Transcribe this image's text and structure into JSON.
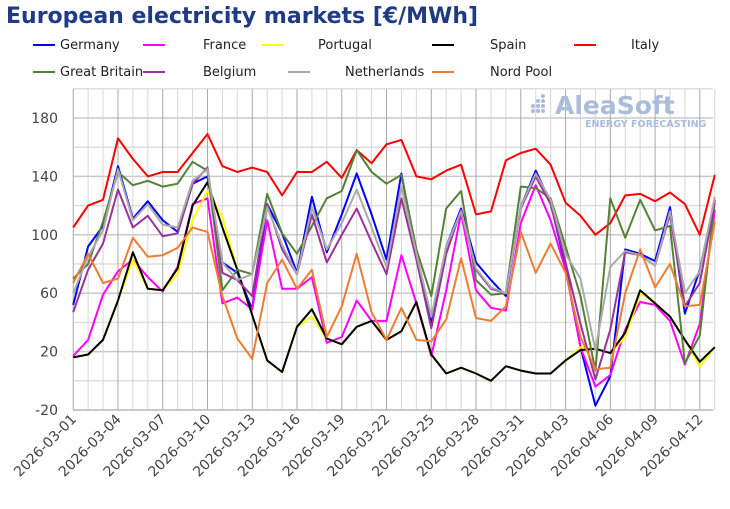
{
  "chart_data": {
    "type": "line",
    "title": "European electricity markets [€/MWh]",
    "xlabel": "",
    "ylabel": "",
    "ylim": [
      -20,
      200
    ],
    "yticks": [
      -20,
      20,
      60,
      100,
      140,
      180
    ],
    "grid": true,
    "legend_placement": "top",
    "start_date": "2026-03-01",
    "xtick_labels": [
      "2026-03-01",
      "2026-03-04",
      "2026-03-07",
      "2026-03-10",
      "2026-03-13",
      "2026-03-16",
      "2026-03-19",
      "2026-03-22",
      "2026-03-25",
      "2026-03-28",
      "2026-03-31",
      "2026-04-03",
      "2026-04-06",
      "2026-04-09",
      "2026-04-12"
    ],
    "series": [
      {
        "name": "Germany",
        "color": "#0000ff",
        "values": [
          52,
          92,
          106,
          147,
          111,
          123,
          110,
          102,
          135,
          140,
          81,
          74,
          49,
          121,
          101,
          74,
          126,
          88,
          114,
          142,
          114,
          83,
          142,
          87,
          39,
          92,
          118,
          81,
          69,
          58,
          119,
          144,
          122,
          78,
          23,
          -17,
          3,
          90,
          87,
          82,
          119,
          46,
          76,
          124
        ]
      },
      {
        "name": "France",
        "color": "#ff00ff",
        "values": [
          17,
          28,
          59,
          75,
          83,
          71,
          61,
          78,
          121,
          125,
          53,
          57,
          49,
          110,
          63,
          63,
          71,
          26,
          30,
          55,
          41,
          41,
          86,
          53,
          17,
          62,
          115,
          62,
          50,
          48,
          108,
          134,
          110,
          76,
          23,
          -4,
          4,
          35,
          54,
          52,
          41,
          11,
          39,
          117
        ]
      },
      {
        "name": "Portugal",
        "color": "#ffff00",
        "values": [
          16,
          18,
          28,
          55,
          83,
          63,
          62,
          73,
          110,
          130,
          112,
          76,
          45,
          14,
          6,
          37,
          44,
          29,
          25,
          37,
          41,
          28,
          34,
          54,
          18,
          5,
          9,
          5,
          0,
          10,
          7,
          5,
          5,
          14,
          23,
          22,
          19,
          30,
          60,
          53,
          44,
          28,
          10,
          23
        ]
      },
      {
        "name": "Spain",
        "color": "#000000",
        "values": [
          16,
          18,
          28,
          55,
          88,
          63,
          62,
          77,
          120,
          136,
          105,
          76,
          45,
          14,
          6,
          37,
          49,
          29,
          25,
          37,
          41,
          28,
          34,
          54,
          18,
          5,
          9,
          5,
          0,
          10,
          7,
          5,
          5,
          14,
          21,
          22,
          19,
          33,
          62,
          53,
          44,
          28,
          13,
          23
        ]
      },
      {
        "name": "Italy",
        "color": "#ff0000",
        "values": [
          105,
          120,
          124,
          166,
          152,
          140,
          143,
          143,
          156,
          169,
          147,
          143,
          146,
          143,
          127,
          143,
          143,
          150,
          139,
          158,
          149,
          162,
          165,
          140,
          138,
          144,
          148,
          114,
          116,
          151,
          156,
          159,
          148,
          122,
          113,
          100,
          108,
          127,
          128,
          123,
          129,
          121,
          100,
          141
        ]
      },
      {
        "name": "Great Britain",
        "color": "#548235",
        "values": [
          70,
          80,
          109,
          143,
          134,
          137,
          133,
          135,
          150,
          144,
          62,
          76,
          73,
          128,
          101,
          87,
          106,
          125,
          130,
          158,
          143,
          135,
          141,
          90,
          58,
          118,
          130,
          69,
          59,
          60,
          133,
          132,
          125,
          92,
          58,
          7,
          125,
          98,
          124,
          103,
          106,
          12,
          31,
          124
        ]
      },
      {
        "name": "Belgium",
        "color": "#993399",
        "values": [
          47,
          76,
          94,
          131,
          105,
          113,
          99,
          101,
          135,
          146,
          74,
          69,
          58,
          121,
          90,
          73,
          114,
          81,
          100,
          118,
          95,
          73,
          125,
          83,
          36,
          87,
          117,
          76,
          63,
          60,
          118,
          140,
          121,
          81,
          39,
          1,
          35,
          88,
          86,
          79,
          114,
          51,
          67,
          122
        ]
      },
      {
        "name": "Netherlands",
        "color": "#aaaaaa",
        "values": [
          60,
          85,
          103,
          145,
          110,
          121,
          107,
          105,
          137,
          145,
          81,
          69,
          73,
          119,
          93,
          73,
          119,
          90,
          108,
          131,
          105,
          78,
          133,
          87,
          44,
          92,
          116,
          77,
          64,
          60,
          119,
          142,
          124,
          87,
          70,
          21,
          78,
          89,
          86,
          79,
          116,
          60,
          75,
          126
        ]
      },
      {
        "name": "Nord Pool",
        "color": "#ed7d31",
        "values": [
          67,
          87,
          67,
          70,
          98,
          85,
          86,
          91,
          105,
          102,
          58,
          29,
          15,
          67,
          83,
          63,
          76,
          30,
          51,
          87,
          47,
          28,
          50,
          28,
          27,
          42,
          84,
          43,
          41,
          51,
          102,
          74,
          94,
          74,
          30,
          8,
          9,
          60,
          90,
          64,
          80,
          51,
          52,
          109
        ]
      }
    ]
  },
  "logo": {
    "name": "AleaSoft",
    "tagline": "ENERGY FORECASTING"
  }
}
